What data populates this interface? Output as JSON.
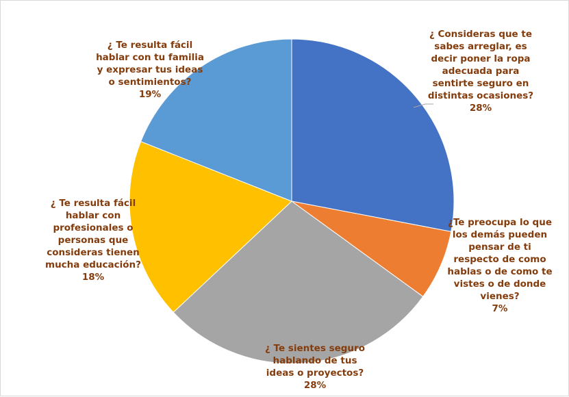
{
  "chart_data": {
    "type": "pie",
    "title": "",
    "slices": [
      {
        "label_lines": [
          "¿ Consideras que te",
          "sabes arreglar, es",
          "decir poner la ropa",
          "adecuada para",
          "sentirte seguro en",
          "distintas ocasiones?"
        ],
        "percent_label": "28%",
        "value": 28,
        "color": "#4472C4"
      },
      {
        "label_lines": [
          "¿Te preocupa lo que",
          "los demás pueden",
          "pensar de ti",
          "respecto de como",
          "hablas o de como te",
          "vistes o de donde",
          "vienes?"
        ],
        "percent_label": "7%",
        "value": 7,
        "color": "#ED7D31"
      },
      {
        "label_lines": [
          "¿ Te sientes seguro",
          "hablando de tus",
          "ideas o proyectos?"
        ],
        "percent_label": "28%",
        "value": 28,
        "color": "#A5A5A5"
      },
      {
        "label_lines": [
          "¿ Te resulta fácil",
          "hablar con",
          "profesionales o",
          "personas que",
          "consideras tienen",
          "mucha educación?"
        ],
        "percent_label": "18%",
        "value": 18,
        "color": "#FFC000"
      },
      {
        "label_lines": [
          "¿ Te resulta fácil",
          "hablar con tu familia",
          "y expresar tus ideas",
          "o sentimientos?"
        ],
        "percent_label": "19%",
        "value": 19,
        "color": "#5B9BD5"
      }
    ],
    "label_color": "#843C0C",
    "leader_line_color": "#A6A6A6"
  }
}
